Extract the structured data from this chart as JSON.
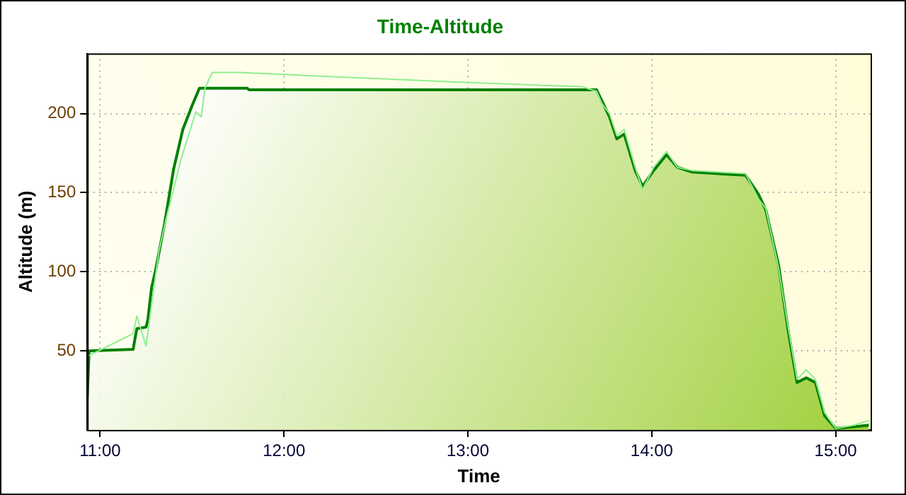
{
  "chart_data": {
    "type": "area",
    "title": "Time-Altitude",
    "xlabel": "Time",
    "ylabel": "Altitude (m)",
    "xlim": [
      10.93,
      15.19
    ],
    "ylim": [
      0,
      238
    ],
    "xticks": [
      {
        "value": 11,
        "label": "11:00"
      },
      {
        "value": 12,
        "label": "12:00"
      },
      {
        "value": 13,
        "label": "13:00"
      },
      {
        "value": 14,
        "label": "14:00"
      },
      {
        "value": 15,
        "label": "15:00"
      }
    ],
    "yticks": [
      50,
      100,
      150,
      200
    ],
    "grid": true,
    "marker": "none",
    "line_style": "solid",
    "series": [
      {
        "type": "line",
        "color": "#90ee90",
        "x": [
          10.94,
          11.18,
          11.2,
          11.25,
          11.29,
          11.32,
          11.36,
          11.44,
          11.52,
          11.55,
          11.57,
          11.61,
          11.76,
          12.91,
          13.62,
          13.7,
          13.73,
          13.77,
          13.81,
          13.85,
          13.91,
          13.95,
          14.01,
          14.08,
          14.14,
          14.22,
          14.51,
          14.58,
          14.62,
          14.69,
          14.74,
          14.79,
          14.84,
          14.89,
          14.94,
          15.0,
          15.1,
          15.18
        ],
        "values": [
          47,
          61,
          72,
          53,
          88,
          113,
          134,
          171,
          201,
          198,
          216,
          226,
          226,
          220,
          217,
          214,
          206,
          200,
          186,
          190,
          166,
          152,
          166,
          176,
          166,
          164,
          162,
          146,
          140,
          102,
          66,
          32,
          38,
          32,
          11,
          1,
          3,
          6
        ]
      },
      {
        "type": "area",
        "color": "#008000",
        "x": [
          10.93,
          10.94,
          11.18,
          11.19,
          11.2,
          11.25,
          11.26,
          11.28,
          11.3,
          11.35,
          11.4,
          11.45,
          11.5,
          11.54,
          11.8,
          11.81,
          13.63,
          13.7,
          13.77,
          13.81,
          13.85,
          13.91,
          13.95,
          14.01,
          14.08,
          14.14,
          14.22,
          14.51,
          14.58,
          14.62,
          14.69,
          14.74,
          14.79,
          14.84,
          14.89,
          14.94,
          15.0,
          15.1,
          15.18
        ],
        "values": [
          20,
          50,
          51,
          58,
          64,
          65,
          70,
          90,
          100,
          130,
          165,
          190,
          205,
          216,
          216,
          215,
          215,
          215,
          198,
          184,
          187,
          164,
          154,
          164,
          174,
          166,
          163,
          161,
          149,
          139,
          104,
          64,
          30,
          33,
          30,
          9,
          1,
          2,
          3
        ]
      }
    ]
  }
}
